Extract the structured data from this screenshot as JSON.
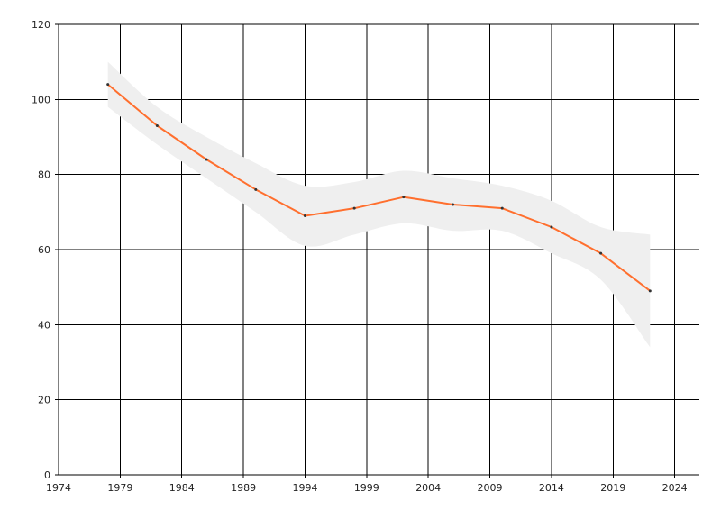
{
  "chart_data": {
    "type": "line",
    "title": "",
    "xlabel": "",
    "ylabel": "",
    "xlim": [
      1974,
      2026
    ],
    "ylim": [
      0,
      120
    ],
    "x_ticks": [
      1974,
      1979,
      1984,
      1989,
      1994,
      1999,
      2004,
      2009,
      2014,
      2019,
      2024
    ],
    "y_ticks": [
      0,
      20,
      40,
      60,
      80,
      100,
      120
    ],
    "grid": true,
    "legend": "none",
    "series": [
      {
        "x": [
          1978,
          1982,
          1986,
          1990,
          1994,
          1998,
          2002,
          2006,
          2010,
          2014,
          2018,
          2022
        ],
        "values": [
          104,
          93,
          84,
          76,
          69,
          71,
          74,
          72,
          71,
          66,
          59,
          49
        ],
        "ci_lower": [
          98,
          88,
          79,
          70,
          61,
          64,
          67,
          65,
          65,
          59,
          52,
          34
        ],
        "ci_upper": [
          110,
          98,
          90,
          83,
          77,
          78,
          81,
          79,
          77,
          73,
          66,
          64
        ],
        "color": "#ff6f2e"
      }
    ],
    "colors": {
      "band": "#efefef",
      "grid": "#000000",
      "marker": "#333333"
    }
  }
}
